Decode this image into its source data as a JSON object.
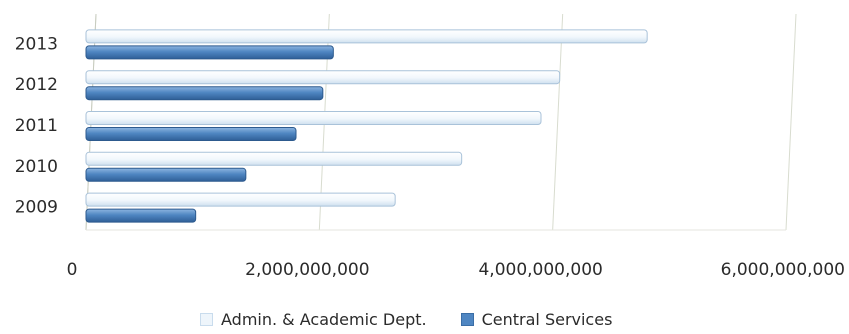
{
  "chart_data": {
    "type": "bar",
    "orientation": "horizontal",
    "categories": [
      "2013",
      "2012",
      "2011",
      "2010",
      "2009"
    ],
    "series": [
      {
        "name": "Admin. & Academic Dept.",
        "values": [
          4810000000,
          4060000000,
          3900000000,
          3220000000,
          2650000000
        ]
      },
      {
        "name": "Central Services",
        "values": [
          2120000000,
          2030000000,
          1800000000,
          1370000000,
          940000000
        ]
      }
    ],
    "x_ticks": [
      "0",
      "2,000,000,000",
      "4,000,000,000",
      "6,000,000,000"
    ],
    "xlim": [
      0,
      6000000000
    ],
    "grid": true,
    "legend_position": "bottom",
    "colors": {
      "admin": "#eef5fb",
      "central": "#4f86c2"
    }
  }
}
